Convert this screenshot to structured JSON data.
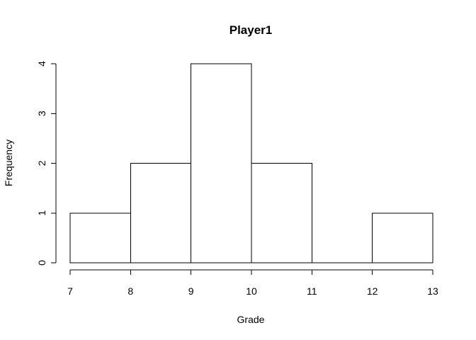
{
  "chart_data": {
    "type": "bar",
    "title": "Player1",
    "xlabel": "Grade",
    "ylabel": "Frequency",
    "bins": [
      {
        "start": 7,
        "end": 8,
        "count": 1
      },
      {
        "start": 8,
        "end": 9,
        "count": 2
      },
      {
        "start": 9,
        "end": 10,
        "count": 4
      },
      {
        "start": 10,
        "end": 11,
        "count": 2
      },
      {
        "start": 11,
        "end": 12,
        "count": 0
      },
      {
        "start": 12,
        "end": 13,
        "count": 1
      }
    ],
    "xlim": [
      7,
      13
    ],
    "ylim": [
      0,
      4
    ],
    "x_ticks": [
      7,
      8,
      9,
      10,
      11,
      12,
      13
    ],
    "y_ticks": [
      0,
      1,
      2,
      3,
      4
    ],
    "grid": false,
    "bar_fill": "#ffffff",
    "bar_stroke": "#000000"
  }
}
